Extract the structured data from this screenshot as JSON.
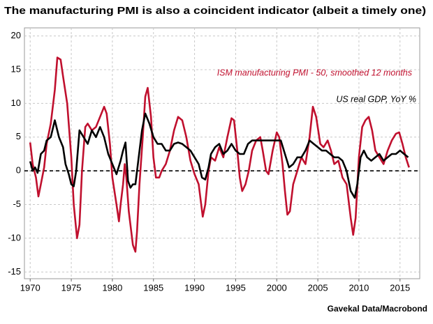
{
  "chart_data": {
    "type": "line",
    "title": "The manufacturing PMI is also a coincident indicator (albeit a timely one)",
    "source": "Gavekal Data/Macrobond",
    "xlim": [
      1969.3,
      2017.4
    ],
    "ylim": [
      -16,
      21.2
    ],
    "xticks": [
      1970,
      1975,
      1980,
      1985,
      1990,
      1995,
      2000,
      2005,
      2010,
      2015
    ],
    "yticks": [
      -15,
      -10,
      -5,
      0,
      5,
      10,
      15,
      20
    ],
    "grid": true,
    "series": [
      {
        "name": "ISM manufacturing PMI - 50, smoothed 12 months",
        "color": "#c0102e",
        "x": [
          1970.0,
          1970.3,
          1970.7,
          1971.0,
          1971.3,
          1971.7,
          1972.0,
          1972.5,
          1973.0,
          1973.3,
          1973.7,
          1974.0,
          1974.5,
          1975.0,
          1975.3,
          1975.7,
          1976.0,
          1976.3,
          1976.7,
          1977.0,
          1977.5,
          1978.0,
          1978.5,
          1979.0,
          1979.3,
          1979.7,
          1980.0,
          1980.5,
          1980.8,
          1981.0,
          1981.3,
          1981.5,
          1981.7,
          1982.0,
          1982.5,
          1982.8,
          1983.0,
          1983.3,
          1983.7,
          1984.0,
          1984.3,
          1984.7,
          1985.0,
          1985.3,
          1985.7,
          1986.0,
          1986.5,
          1987.0,
          1987.5,
          1988.0,
          1988.5,
          1989.0,
          1989.5,
          1990.0,
          1990.5,
          1991.0,
          1991.3,
          1991.7,
          1992.0,
          1992.5,
          1993.0,
          1993.5,
          1994.0,
          1994.5,
          1994.8,
          1995.2,
          1995.5,
          1995.8,
          1996.2,
          1996.6,
          1997.0,
          1997.5,
          1998.0,
          1998.3,
          1998.7,
          1999.0,
          1999.5,
          2000.0,
          2000.3,
          2000.7,
          2001.0,
          2001.3,
          2001.6,
          2002.0,
          2002.5,
          2003.0,
          2003.5,
          2004.0,
          2004.4,
          2004.8,
          2005.3,
          2005.7,
          2006.2,
          2006.6,
          2007.0,
          2007.5,
          2008.0,
          2008.5,
          2009.0,
          2009.3,
          2009.6,
          2010.0,
          2010.4,
          2010.8,
          2011.2,
          2011.6,
          2012.0,
          2012.5,
          2013.0,
          2013.5,
          2014.0,
          2014.5,
          2014.9,
          2015.3,
          2015.7,
          2016.1
        ],
        "values": [
          4.2,
          1,
          -1,
          -3.8,
          -2,
          0.5,
          4,
          7,
          12,
          16.8,
          16.5,
          14,
          10,
          2,
          -5,
          -10,
          -8,
          0,
          6.5,
          7,
          6,
          6.5,
          8,
          9.5,
          8.5,
          4,
          -1,
          -5,
          -7.5,
          -5,
          -2,
          1,
          -1,
          -6,
          -11,
          -12,
          -9,
          -2,
          5,
          11,
          12.3,
          8,
          2,
          -1,
          -1,
          0,
          1,
          3,
          6,
          8,
          7.5,
          5,
          1.5,
          -0.5,
          -2,
          -6.8,
          -5,
          0,
          2,
          1.5,
          3.5,
          2,
          5,
          7.8,
          7.5,
          3,
          -1,
          -3,
          -2,
          0,
          3,
          4.5,
          5,
          3,
          0,
          -0.5,
          3,
          5.7,
          5,
          1,
          -3,
          -6.5,
          -6,
          -2,
          0,
          2,
          1,
          5,
          9.5,
          8,
          4,
          3.5,
          4.5,
          3,
          1,
          1.5,
          -1,
          -2,
          -7,
          -9.5,
          -7,
          2,
          6.5,
          7.5,
          8,
          6,
          3,
          2,
          1,
          3,
          4.5,
          5.5,
          5.7,
          4,
          2,
          0.5
        ]
      },
      {
        "name": "US real GDP, YoY %",
        "color": "#000000",
        "x": [
          1970.0,
          1970.3,
          1970.6,
          1970.9,
          1971.3,
          1971.7,
          1972.0,
          1972.5,
          1973.0,
          1973.5,
          1974.0,
          1974.3,
          1974.7,
          1975.0,
          1975.3,
          1975.6,
          1976.0,
          1976.5,
          1977.0,
          1977.5,
          1978.0,
          1978.5,
          1979.0,
          1979.5,
          1980.0,
          1980.5,
          1981.0,
          1981.3,
          1981.6,
          1981.9,
          1982.2,
          1982.5,
          1982.8,
          1983.2,
          1983.6,
          1984.0,
          1984.5,
          1985.0,
          1985.5,
          1986.0,
          1986.5,
          1987.0,
          1987.5,
          1988.0,
          1988.5,
          1989.0,
          1989.5,
          1990.0,
          1990.5,
          1990.9,
          1991.3,
          1991.7,
          1992.0,
          1992.5,
          1993.0,
          1993.5,
          1994.0,
          1994.5,
          1995.0,
          1995.5,
          1996.0,
          1996.5,
          1997.0,
          1997.5,
          1998.0,
          1998.5,
          1999.0,
          1999.5,
          2000.0,
          2000.5,
          2001.0,
          2001.5,
          2002.0,
          2002.5,
          2003.0,
          2003.5,
          2004.0,
          2004.5,
          2005.0,
          2005.5,
          2006.0,
          2006.5,
          2007.0,
          2007.5,
          2008.0,
          2008.5,
          2009.0,
          2009.5,
          2009.8,
          2010.2,
          2010.6,
          2011.0,
          2011.5,
          2012.0,
          2012.5,
          2013.0,
          2013.5,
          2014.0,
          2014.5,
          2015.0,
          2015.5,
          2016.0
        ],
        "values": [
          1.4,
          0,
          0.5,
          -0.3,
          2.5,
          3,
          4.5,
          5,
          7.5,
          5,
          3.5,
          1,
          -0.5,
          -2,
          -2.3,
          0,
          6,
          5,
          4,
          6,
          5,
          6.5,
          5,
          2.5,
          1,
          -0.5,
          1.5,
          3,
          4.2,
          -1.5,
          -2.5,
          -2,
          -2,
          2,
          6,
          8.5,
          7,
          5,
          4,
          4,
          3,
          3,
          4,
          4.2,
          4,
          3.5,
          3,
          2,
          1,
          -1,
          -1.3,
          0.5,
          2.5,
          3.5,
          4,
          2.5,
          3,
          4,
          3,
          2.5,
          2.5,
          4,
          4.5,
          4.5,
          4.5,
          4.5,
          4.5,
          4.5,
          4.5,
          4.5,
          2.5,
          0.5,
          1,
          2,
          2,
          3,
          4.5,
          4,
          3.5,
          3,
          3,
          2.5,
          2,
          2,
          1.5,
          0,
          -3,
          -4,
          -2,
          2,
          3,
          2,
          1.5,
          2,
          2.5,
          1.5,
          2,
          2.5,
          2.5,
          3,
          2.5,
          2
        ]
      }
    ]
  }
}
